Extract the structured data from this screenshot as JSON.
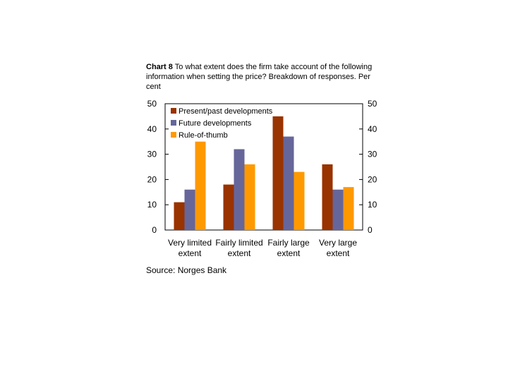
{
  "title": {
    "label": "Chart 8",
    "text": "To what extent does the firm take account of the following information when setting the price? Breakdown of responses. Per cent"
  },
  "source": "Source: Norges Bank",
  "chart_data": {
    "type": "bar",
    "categories": [
      [
        "Very limited",
        "extent"
      ],
      [
        "Fairly limited",
        "extent"
      ],
      [
        "Fairly large",
        "extent"
      ],
      [
        "Very large",
        "extent"
      ]
    ],
    "series": [
      {
        "name": "Present/past developments",
        "values": [
          11,
          18,
          45,
          26
        ],
        "color": "#993300"
      },
      {
        "name": "Future developments",
        "values": [
          16,
          32,
          37,
          16
        ],
        "color": "#66669A"
      },
      {
        "name": "Rule-of-thumb",
        "values": [
          35,
          26,
          23,
          17
        ],
        "color": "#FF9900"
      }
    ],
    "ylim": [
      0,
      50
    ],
    "yticks": [
      0,
      10,
      20,
      30,
      40,
      50
    ],
    "left_axis": true,
    "right_axis": true,
    "grid": false,
    "legend_position": "top-left"
  }
}
